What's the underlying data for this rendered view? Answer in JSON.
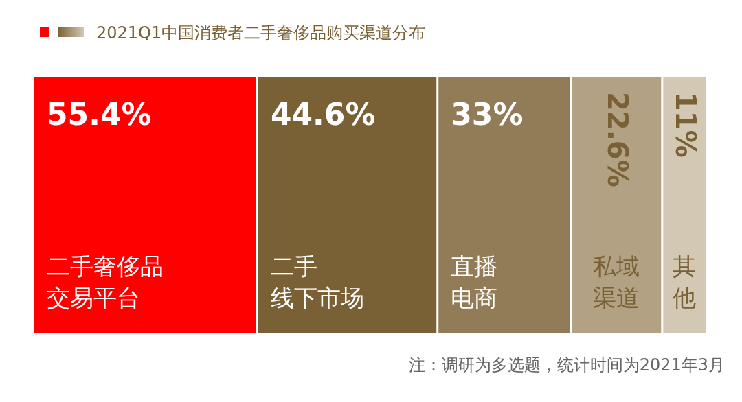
{
  "chart_data": {
    "type": "other",
    "title": "2021Q1中国消费者二手奢侈品购买渠道分布",
    "categories": [
      "二手奢侈品交易平台",
      "二手线下市场",
      "直播电商",
      "私域渠道",
      "其他"
    ],
    "values": [
      55.4,
      44.6,
      33,
      22.6,
      11
    ],
    "value_labels": [
      "55.4%",
      "44.6%",
      "33%",
      "22.6%",
      "11%"
    ],
    "colors": [
      "#ff0000",
      "#7a6035",
      "#927c58",
      "#b2a183",
      "#d2c8b4"
    ],
    "annotations": [
      "注：调研为多选题，统计时间为2021年3月"
    ]
  }
}
